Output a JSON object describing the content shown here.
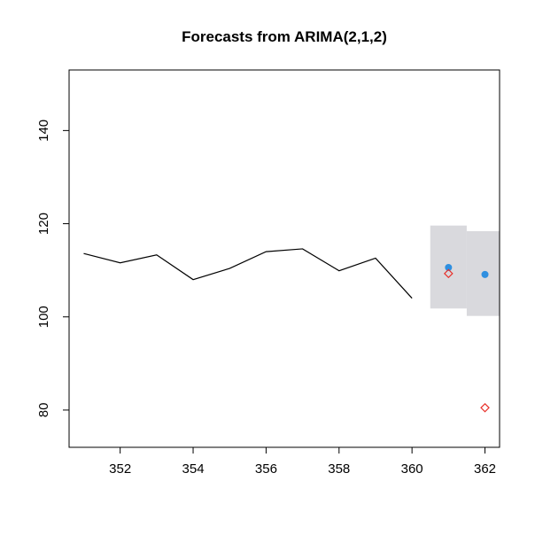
{
  "chart_data": {
    "type": "line",
    "title": "Forecasts from ARIMA(2,1,2)",
    "xlabel": "",
    "ylabel": "",
    "xlim": [
      350.6,
      362.4
    ],
    "ylim": [
      72,
      153
    ],
    "x_ticks": [
      352,
      354,
      356,
      358,
      360,
      362
    ],
    "y_ticks": [
      80,
      100,
      120,
      140
    ],
    "grid": false,
    "legend": "none",
    "series": [
      {
        "type": "line",
        "color": "#000000",
        "x": [
          351,
          352,
          353,
          354,
          355,
          356,
          357,
          358,
          359,
          360
        ],
        "y": [
          113.6,
          111.6,
          113.3,
          108.0,
          110.4,
          114.0,
          114.6,
          109.9,
          112.6,
          104.0
        ]
      },
      {
        "type": "point",
        "marker": "filled-circle",
        "color": "#2f8fe0",
        "x": [
          361,
          362
        ],
        "y": [
          110.6,
          109.1
        ]
      },
      {
        "type": "point",
        "marker": "open-diamond",
        "color": "#e8302a",
        "x": [
          361,
          362
        ],
        "y": [
          109.3,
          80.5
        ]
      }
    ],
    "intervals": [
      {
        "x": 361,
        "lower": 101.8,
        "upper": 119.6,
        "color": "#d9d9dd"
      },
      {
        "x": 362,
        "lower": 100.2,
        "upper": 118.4,
        "color": "#d9d9dd"
      }
    ]
  }
}
